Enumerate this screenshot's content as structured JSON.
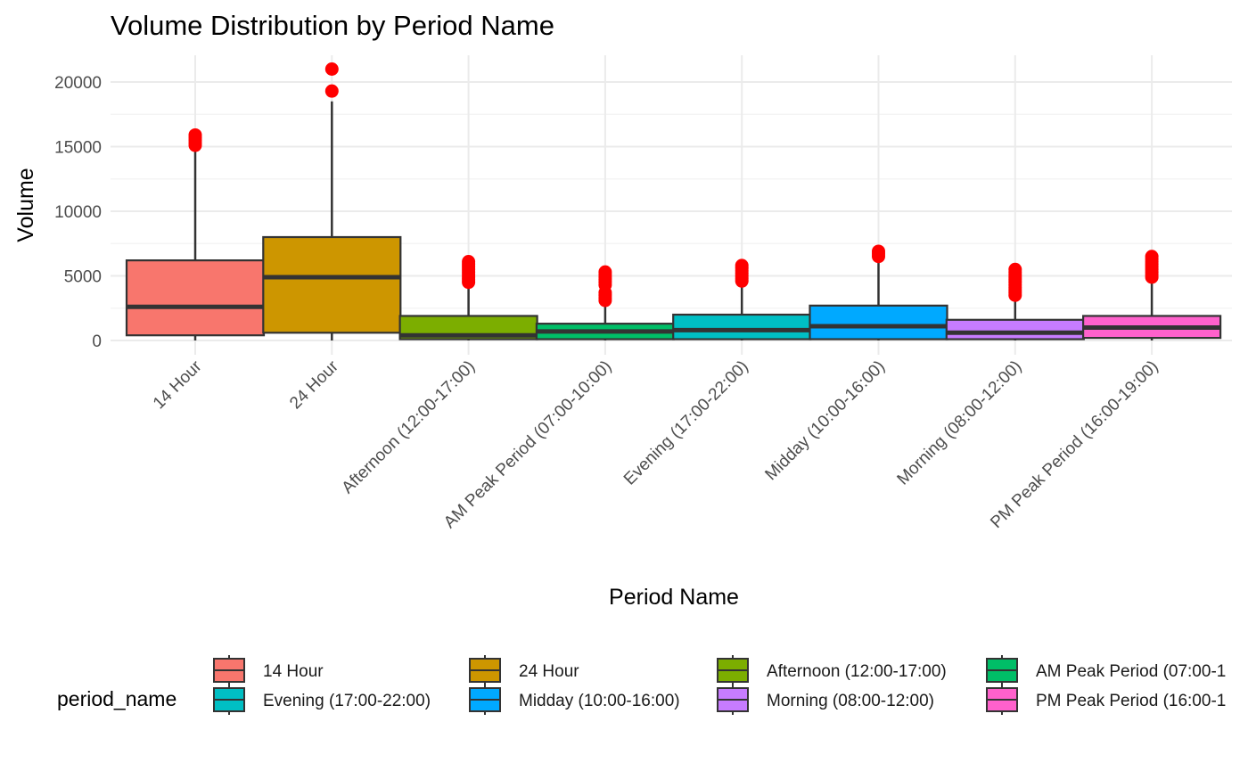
{
  "chart_data": {
    "type": "boxplot",
    "title": "Volume Distribution by Period Name",
    "xlabel": "Period Name",
    "ylabel": "Volume",
    "ylim": [
      -1200,
      22200
    ],
    "yticks": [
      0,
      5000,
      10000,
      15000,
      20000
    ],
    "grid": true,
    "legend": {
      "title": "period_name",
      "position": "bottom",
      "entries": [
        "14 Hour",
        "24 Hour",
        "Afternoon (12:00-17:00)",
        "AM Peak Period (07:00-1",
        "Evening (17:00-22:00)",
        "Midday (10:00-16:00)",
        "Morning (08:00-12:00)",
        "PM Peak Period (16:00-1"
      ]
    },
    "outlier_color": "#ff0000",
    "categories": [
      {
        "name": "14 Hour",
        "color": "#F8766D",
        "min": 0,
        "q1": 400,
        "median": 2600,
        "q3": 6200,
        "max": 15000,
        "outliers": [
          15100,
          15300,
          15500,
          15700,
          15900
        ]
      },
      {
        "name": "24 Hour",
        "color": "#CD9600",
        "min": 0,
        "q1": 600,
        "median": 4900,
        "q3": 8000,
        "max": 18500,
        "outliers": [
          19300,
          21000
        ]
      },
      {
        "name": "Afternoon (12:00-17:00)",
        "color": "#7CAE00",
        "min": 0,
        "q1": 100,
        "median": 400,
        "q3": 1900,
        "max": 4400,
        "outliers": [
          4500,
          4700,
          4900,
          5100,
          5300,
          5500,
          5700,
          5900,
          6100
        ]
      },
      {
        "name": "AM Peak Period (07:00-10:00)",
        "color": "#00BE67",
        "min": 0,
        "q1": 100,
        "median": 700,
        "q3": 1300,
        "max": 3000,
        "outliers": [
          3100,
          3300,
          3500,
          3700,
          4300,
          4500,
          4700,
          4900,
          5100,
          5300
        ]
      },
      {
        "name": "Evening (17:00-22:00)",
        "color": "#00BFC4",
        "min": 0,
        "q1": 100,
        "median": 800,
        "q3": 2000,
        "max": 4500,
        "outliers": [
          4600,
          4800,
          5000,
          5200,
          5400,
          5600,
          5800
        ]
      },
      {
        "name": "Midday (10:00-16:00)",
        "color": "#00A9FF",
        "min": 0,
        "q1": 100,
        "median": 1100,
        "q3": 2700,
        "max": 6300,
        "outliers": [
          6500,
          6700,
          6900
        ]
      },
      {
        "name": "Morning (08:00-12:00)",
        "color": "#C77CFF",
        "min": 0,
        "q1": 100,
        "median": 600,
        "q3": 1600,
        "max": 3400,
        "outliers": [
          3500,
          3700,
          3900,
          4100,
          4300,
          4500,
          4700,
          4900,
          5100,
          5300,
          5500
        ]
      },
      {
        "name": "PM Peak Period (16:00-19:00)",
        "color": "#FF61CC",
        "min": 0,
        "q1": 200,
        "median": 1000,
        "q3": 1900,
        "max": 4800,
        "outliers": [
          4900,
          5100,
          5300,
          5500,
          5700,
          5900,
          6100,
          6300,
          6500
        ]
      }
    ]
  }
}
